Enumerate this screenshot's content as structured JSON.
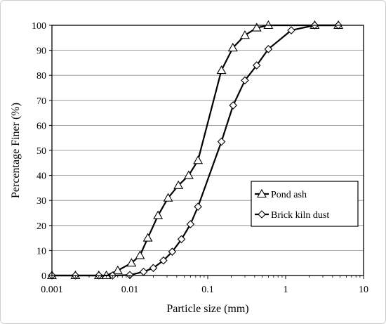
{
  "chart_data": {
    "type": "line",
    "xlabel": "Particle size (mm)",
    "ylabel": "Percentage Finer (%)",
    "x_scale": "log",
    "xlim": [
      0.001,
      10
    ],
    "ylim": [
      0,
      100
    ],
    "x_ticks": [
      "0.001",
      "0.01",
      "0.1",
      "1",
      "10"
    ],
    "y_ticks": [
      "0",
      "10",
      "20",
      "30",
      "40",
      "50",
      "60",
      "70",
      "80",
      "90",
      "100"
    ],
    "grid": "horizontal",
    "legend_position": "bottom-right",
    "series": [
      {
        "name": "Pond ash",
        "marker": "triangle",
        "color": "#000000",
        "points": [
          [
            0.001,
            0
          ],
          [
            0.002,
            0
          ],
          [
            0.004,
            0
          ],
          [
            0.005,
            0
          ],
          [
            0.007,
            2
          ],
          [
            0.0105,
            5
          ],
          [
            0.0135,
            8
          ],
          [
            0.017,
            15
          ],
          [
            0.023,
            24
          ],
          [
            0.031,
            31
          ],
          [
            0.042,
            36
          ],
          [
            0.057,
            40
          ],
          [
            0.075,
            46
          ],
          [
            0.15,
            82
          ],
          [
            0.21,
            91
          ],
          [
            0.3,
            96
          ],
          [
            0.425,
            99
          ],
          [
            0.6,
            100
          ],
          [
            2.36,
            100
          ],
          [
            4.75,
            100
          ]
        ]
      },
      {
        "name": "Brick kiln dust",
        "marker": "diamond",
        "color": "#000000",
        "points": [
          [
            0.001,
            0
          ],
          [
            0.002,
            0
          ],
          [
            0.004,
            0
          ],
          [
            0.006,
            0
          ],
          [
            0.01,
            0.2
          ],
          [
            0.015,
            1.5
          ],
          [
            0.02,
            3
          ],
          [
            0.027,
            6
          ],
          [
            0.035,
            9.5
          ],
          [
            0.046,
            14.5
          ],
          [
            0.06,
            20.5
          ],
          [
            0.075,
            27.5
          ],
          [
            0.15,
            53.5
          ],
          [
            0.212,
            68
          ],
          [
            0.3,
            78
          ],
          [
            0.425,
            84
          ],
          [
            0.6,
            90.5
          ],
          [
            1.18,
            98
          ],
          [
            2.36,
            100
          ],
          [
            4.75,
            100
          ]
        ]
      }
    ]
  }
}
